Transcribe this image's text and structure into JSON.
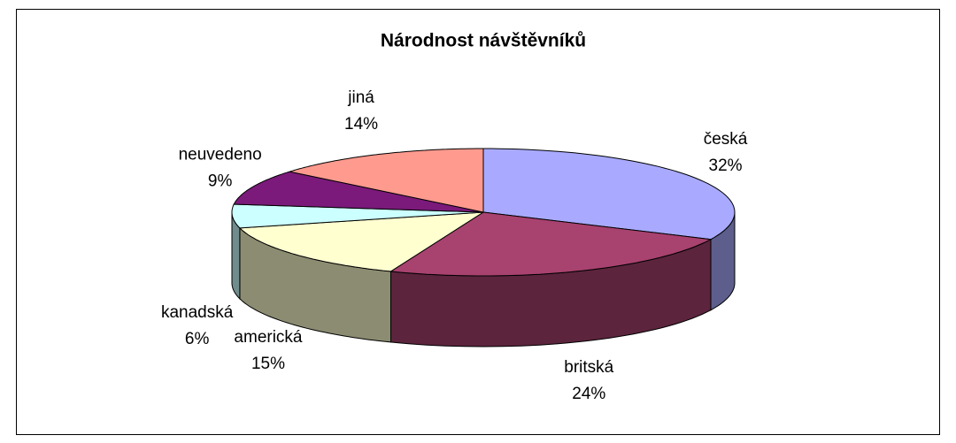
{
  "chart_data": {
    "type": "pie3d",
    "title": "Národnost návštěvníků",
    "categories": [
      "česká",
      "britská",
      "americká",
      "kanadská",
      "neuvedeno",
      "jiná"
    ],
    "values": [
      32,
      24,
      15,
      6,
      9,
      14
    ],
    "value_labels": [
      "32%",
      "24%",
      "15%",
      "6%",
      "9%",
      "14%"
    ],
    "colors": [
      "#a9aaff",
      "#a8426f",
      "#ffffd0",
      "#ccffff",
      "#7b1a7b",
      "#ff9a8e"
    ]
  }
}
